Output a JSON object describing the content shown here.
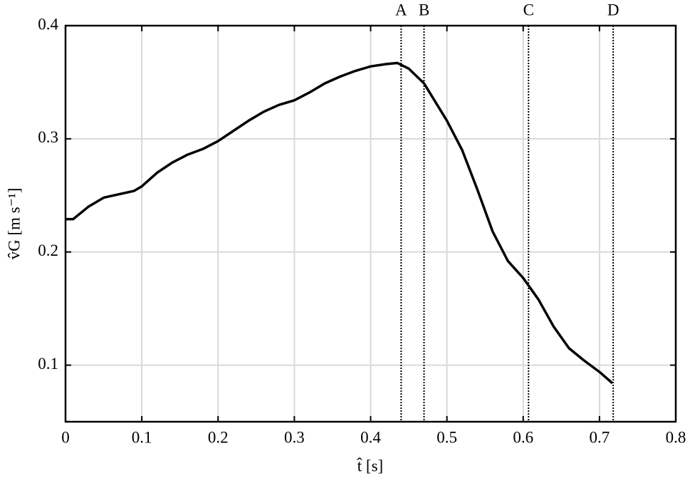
{
  "chart_data": {
    "type": "line",
    "xlabel": "t̂ [s]",
    "ylabel": "v̂G [m s⁻¹]",
    "x": [
      0,
      0.01,
      0.03,
      0.05,
      0.07,
      0.09,
      0.1,
      0.12,
      0.14,
      0.16,
      0.18,
      0.2,
      0.22,
      0.24,
      0.26,
      0.28,
      0.3,
      0.32,
      0.34,
      0.36,
      0.38,
      0.4,
      0.42,
      0.435,
      0.45,
      0.47,
      0.5,
      0.52,
      0.54,
      0.56,
      0.58,
      0.6,
      0.62,
      0.64,
      0.66,
      0.68,
      0.7,
      0.717
    ],
    "series": [
      {
        "color": "#000000",
        "values": [
          0.229,
          0.229,
          0.24,
          0.248,
          0.251,
          0.254,
          0.258,
          0.27,
          0.279,
          0.286,
          0.291,
          0.298,
          0.307,
          0.316,
          0.324,
          0.33,
          0.334,
          0.341,
          0.349,
          0.355,
          0.36,
          0.364,
          0.366,
          0.367,
          0.362,
          0.349,
          0.316,
          0.29,
          0.255,
          0.218,
          0.192,
          0.177,
          0.158,
          0.134,
          0.115,
          0.104,
          0.094,
          0.084
        ]
      }
    ],
    "markers": [
      {
        "label": "A",
        "x": 0.44
      },
      {
        "label": "B",
        "x": 0.47
      },
      {
        "label": "C",
        "x": 0.607
      },
      {
        "label": "D",
        "x": 0.718
      }
    ],
    "xlim": [
      0,
      0.8
    ],
    "xticks": [
      0,
      0.1,
      0.2,
      0.3,
      0.4,
      0.5,
      0.6,
      0.7,
      0.8
    ],
    "ylim": [
      0.05,
      0.4
    ],
    "yticks": [
      0.1,
      0.2,
      0.3,
      0.4
    ],
    "grid": true
  }
}
